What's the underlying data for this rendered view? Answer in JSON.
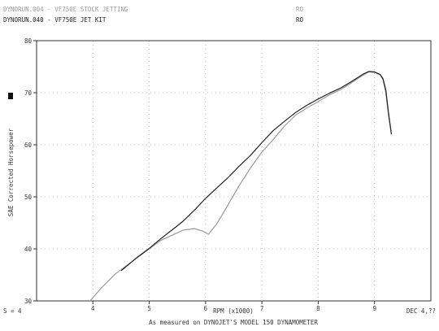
{
  "chart_data": {
    "type": "line",
    "xlabel": "RPM (x1000)",
    "ylabel": "SAE Corrected Horsepower",
    "footer": "As measured on DYNOJET'S MODEL 150 DYNAMOMETER",
    "footer_left": "S = 4",
    "footer_right": "DEC 4,??",
    "xlim": [
      3.0,
      10.0
    ],
    "ylim": [
      30,
      80
    ],
    "x_ticks": [
      4,
      5,
      6,
      7,
      8,
      9
    ],
    "y_ticks": [
      30,
      40,
      50,
      60,
      70,
      80
    ],
    "grid": "dotted",
    "legend_position": "top-left",
    "series": [
      {
        "name": "DYNORUN.004 - VF750E STOCK JETTING",
        "tag": "RO",
        "color": "#9a9a9a",
        "points": [
          [
            3.95,
            30.0
          ],
          [
            4.15,
            32.5
          ],
          [
            4.4,
            35.2
          ],
          [
            4.7,
            37.6
          ],
          [
            5.0,
            40.0
          ],
          [
            5.2,
            41.6
          ],
          [
            5.4,
            42.6
          ],
          [
            5.6,
            43.6
          ],
          [
            5.8,
            43.9
          ],
          [
            5.95,
            43.4
          ],
          [
            6.05,
            42.8
          ],
          [
            6.2,
            44.8
          ],
          [
            6.4,
            48.5
          ],
          [
            6.6,
            52.2
          ],
          [
            6.8,
            55.6
          ],
          [
            7.0,
            58.6
          ],
          [
            7.2,
            61.0
          ],
          [
            7.4,
            63.6
          ],
          [
            7.6,
            65.7
          ],
          [
            7.8,
            67.1
          ],
          [
            8.0,
            68.3
          ],
          [
            8.2,
            69.6
          ],
          [
            8.4,
            70.6
          ],
          [
            8.6,
            72.0
          ],
          [
            8.8,
            73.4
          ],
          [
            8.9,
            74.0
          ],
          [
            9.0,
            73.9
          ],
          [
            9.1,
            73.4
          ],
          [
            9.15,
            72.5
          ],
          [
            9.2,
            70.0
          ],
          [
            9.25,
            65.5
          ],
          [
            9.3,
            62.0
          ]
        ]
      },
      {
        "name": "DYNORUN.040 - VF750E JET KIT",
        "tag": "RO",
        "color": "#222222",
        "points": [
          [
            4.5,
            35.8
          ],
          [
            4.8,
            38.5
          ],
          [
            5.0,
            40.1
          ],
          [
            5.2,
            41.9
          ],
          [
            5.4,
            43.6
          ],
          [
            5.6,
            45.3
          ],
          [
            5.8,
            47.4
          ],
          [
            6.0,
            49.7
          ],
          [
            6.2,
            51.7
          ],
          [
            6.4,
            53.7
          ],
          [
            6.6,
            55.9
          ],
          [
            6.8,
            58.0
          ],
          [
            7.0,
            60.4
          ],
          [
            7.2,
            62.7
          ],
          [
            7.4,
            64.5
          ],
          [
            7.6,
            66.2
          ],
          [
            7.8,
            67.6
          ],
          [
            8.0,
            68.8
          ],
          [
            8.2,
            69.9
          ],
          [
            8.4,
            70.9
          ],
          [
            8.6,
            72.2
          ],
          [
            8.8,
            73.6
          ],
          [
            8.9,
            74.1
          ],
          [
            9.0,
            74.0
          ],
          [
            9.1,
            73.5
          ],
          [
            9.15,
            72.7
          ],
          [
            9.2,
            70.5
          ],
          [
            9.25,
            66.0
          ],
          [
            9.3,
            62.0
          ]
        ]
      }
    ]
  }
}
